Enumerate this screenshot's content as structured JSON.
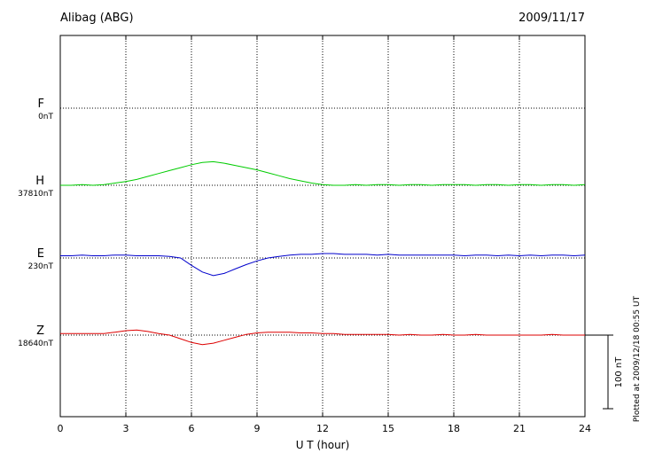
{
  "header": {
    "station": "Alibag (ABG)",
    "date": "2009/11/17"
  },
  "axis": {
    "xlabel": "U T (hour)",
    "ticks": [
      0,
      3,
      6,
      9,
      12,
      15,
      18,
      21,
      24
    ],
    "x_range": [
      0,
      24
    ]
  },
  "scalebar": {
    "label": "100 nT",
    "nT": 100
  },
  "footer_note": "Plotted at 2009/12/18 00:55 UT",
  "chart_data": {
    "type": "line",
    "title": "Alibag (ABG) magnetogram 2009/11/17",
    "xlabel": "U T (hour)",
    "x_range_hours": [
      0,
      24
    ],
    "x_step_hours": 0.5,
    "scale_bar_nT": 100,
    "grid": "dotted",
    "series": [
      {
        "name": "F",
        "baseline_label": "0nT",
        "baseline_nT": 0,
        "color": "#FFA500",
        "visible": false,
        "values": [
          0,
          0,
          0,
          0,
          0,
          0,
          0,
          0,
          0,
          0,
          0,
          0,
          0,
          0,
          0,
          0,
          0,
          0,
          0,
          0,
          0,
          0,
          0,
          0,
          0,
          0,
          0,
          0,
          0,
          0,
          0,
          0,
          0,
          0,
          0,
          0,
          0,
          0,
          0,
          0,
          0,
          0,
          0,
          0,
          0,
          0,
          0,
          0,
          0
        ]
      },
      {
        "name": "H",
        "baseline_label": "37810nT",
        "baseline_nT": 37810,
        "color": "#00CC00",
        "visible": true,
        "values": [
          0,
          0,
          1,
          0,
          1,
          3,
          5,
          8,
          12,
          16,
          20,
          24,
          28,
          31,
          32,
          30,
          27,
          24,
          21,
          17,
          13,
          9,
          6,
          3,
          1,
          0,
          0,
          1,
          0,
          1,
          1,
          0,
          1,
          1,
          0,
          1,
          1,
          1,
          0,
          1,
          1,
          0,
          1,
          1,
          0,
          1,
          1,
          0,
          1
        ]
      },
      {
        "name": "E",
        "baseline_label": "230nT",
        "baseline_nT": 230,
        "color": "#0000CC",
        "visible": true,
        "values": [
          3,
          3,
          4,
          3,
          3,
          4,
          4,
          3,
          3,
          3,
          2,
          0,
          -10,
          -19,
          -24,
          -21,
          -15,
          -9,
          -4,
          0,
          2,
          4,
          5,
          5,
          6,
          6,
          5,
          5,
          5,
          4,
          5,
          4,
          4,
          4,
          4,
          4,
          4,
          3,
          4,
          4,
          3,
          4,
          3,
          4,
          3,
          4,
          4,
          3,
          4
        ]
      },
      {
        "name": "Z",
        "baseline_label": "18640nT",
        "baseline_nT": 18640,
        "color": "#DD0000",
        "visible": true,
        "values": [
          2,
          2,
          2,
          2,
          2,
          4,
          6,
          7,
          5,
          2,
          0,
          -5,
          -10,
          -13,
          -11,
          -7,
          -3,
          1,
          3,
          4,
          4,
          4,
          3,
          3,
          2,
          2,
          1,
          1,
          1,
          1,
          1,
          0,
          1,
          0,
          0,
          1,
          0,
          0,
          1,
          0,
          0,
          0,
          0,
          0,
          0,
          1,
          0,
          0,
          0
        ]
      }
    ]
  }
}
